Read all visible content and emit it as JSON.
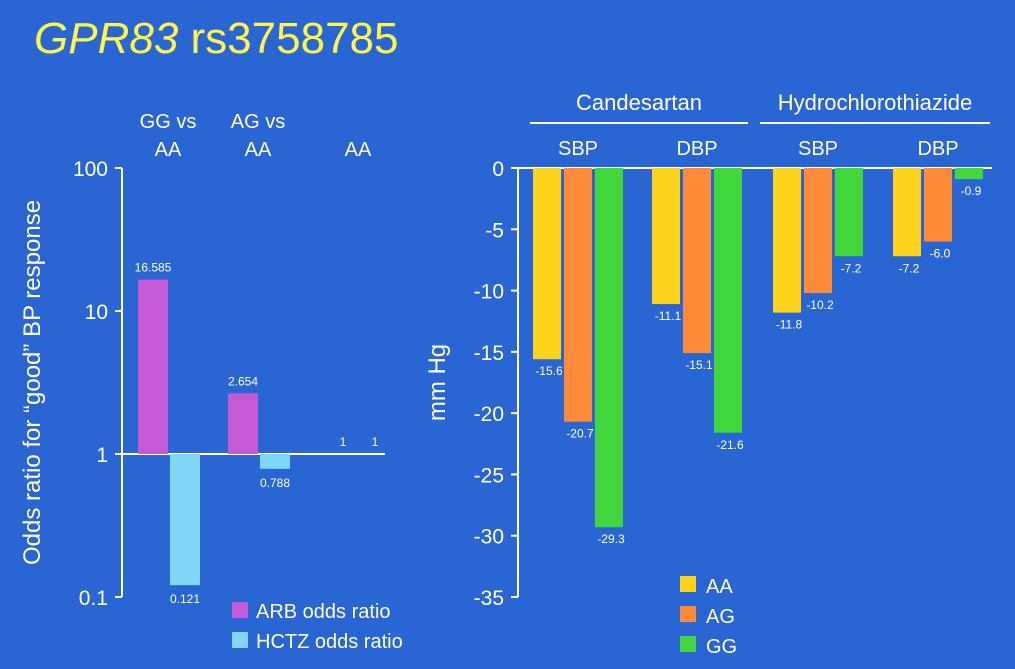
{
  "title": {
    "gene": "GPR83",
    "snp": "rs3758785"
  },
  "colors": {
    "background": "#2a66d3",
    "title": "#fff64a",
    "arb": "#c659d6",
    "hctz": "#7fd6f7",
    "aa": "#ffd21e",
    "ag": "#ff8a3a",
    "gg": "#42d83d"
  },
  "chart_data": [
    {
      "type": "bar",
      "ylabel": "Odds ratio for “good” BP response",
      "yscale": "log",
      "ylim": [
        0.1,
        100
      ],
      "yticks": [
        "100",
        "10",
        "1",
        "0.1"
      ],
      "tick_values": [
        100,
        10,
        1,
        0.1
      ],
      "groups": [
        [
          "GG vs",
          "AA"
        ],
        [
          "AG vs",
          "AA"
        ],
        [
          "",
          "AA"
        ]
      ],
      "series": [
        {
          "name": "ARB odds ratio",
          "values": [
            16.585,
            2.654,
            1
          ],
          "labels": [
            "16.585",
            "2.654",
            "1"
          ]
        },
        {
          "name": "HCTZ odds ratio",
          "values": [
            0.121,
            0.788,
            1
          ],
          "labels": [
            "0.121",
            "0.788",
            "1"
          ]
        }
      ]
    },
    {
      "type": "bar",
      "ylabel": "mm Hg",
      "ylim": [
        -35,
        0
      ],
      "yticks": [
        "0",
        "-5",
        "-10",
        "-15",
        "-20",
        "-25",
        "-30",
        "-35"
      ],
      "tick_values": [
        0,
        -5,
        -10,
        -15,
        -20,
        -25,
        -30,
        -35
      ],
      "drugs": [
        "Candesartan",
        "Hydrochlorothiazide"
      ],
      "categories": [
        "SBP",
        "DBP",
        "SBP",
        "DBP"
      ],
      "series": [
        {
          "name": "AA",
          "values": [
            -15.6,
            -11.1,
            -11.8,
            -7.2
          ],
          "labels": [
            "-15.6",
            "-11.1",
            "-11.8",
            "-7.2"
          ]
        },
        {
          "name": "AG",
          "values": [
            -20.7,
            -15.1,
            -10.2,
            -6.0
          ],
          "labels": [
            "-20.7",
            "-15.1",
            "-10.2",
            "-6.0"
          ]
        },
        {
          "name": "GG",
          "values": [
            -29.3,
            -21.6,
            -7.2,
            -0.9
          ],
          "labels": [
            "-29.3",
            "-21.6",
            "-7.2",
            "-0.9"
          ]
        }
      ]
    }
  ]
}
